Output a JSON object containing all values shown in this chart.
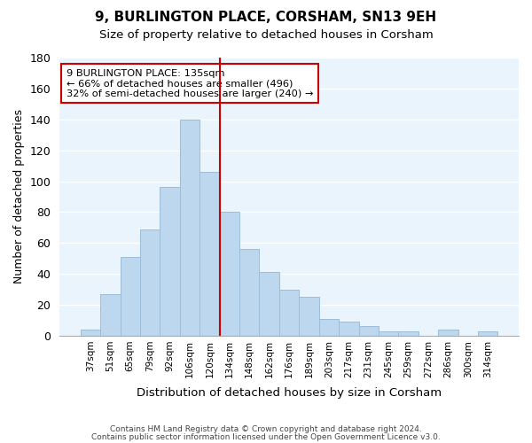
{
  "title": "9, BURLINGTON PLACE, CORSHAM, SN13 9EH",
  "subtitle": "Size of property relative to detached houses in Corsham",
  "xlabel": "Distribution of detached houses by size in Corsham",
  "ylabel": "Number of detached properties",
  "bar_labels": [
    "37sqm",
    "51sqm",
    "65sqm",
    "79sqm",
    "92sqm",
    "106sqm",
    "120sqm",
    "134sqm",
    "148sqm",
    "162sqm",
    "176sqm",
    "189sqm",
    "203sqm",
    "217sqm",
    "231sqm",
    "245sqm",
    "259sqm",
    "272sqm",
    "286sqm",
    "300sqm",
    "314sqm"
  ],
  "bar_values": [
    4,
    27,
    51,
    69,
    96,
    140,
    106,
    80,
    56,
    41,
    30,
    25,
    11,
    9,
    6,
    3,
    3,
    0,
    4,
    0,
    3
  ],
  "bar_color": "#bdd7ee",
  "bar_edge_color": "#9dbdd8",
  "vline_x_index": 7,
  "vline_color": "#cc0000",
  "annotation_title": "9 BURLINGTON PLACE: 135sqm",
  "annotation_line1": "← 66% of detached houses are smaller (496)",
  "annotation_line2": "32% of semi-detached houses are larger (240) →",
  "annotation_box_color": "#ffffff",
  "annotation_box_edge": "#cc0000",
  "ylim": [
    0,
    180
  ],
  "yticks": [
    0,
    20,
    40,
    60,
    80,
    100,
    120,
    140,
    160,
    180
  ],
  "footer1": "Contains HM Land Registry data © Crown copyright and database right 2024.",
  "footer2": "Contains public sector information licensed under the Open Government Licence v3.0.",
  "bg_color": "#ffffff",
  "plot_bg_color": "#eaf4fc"
}
